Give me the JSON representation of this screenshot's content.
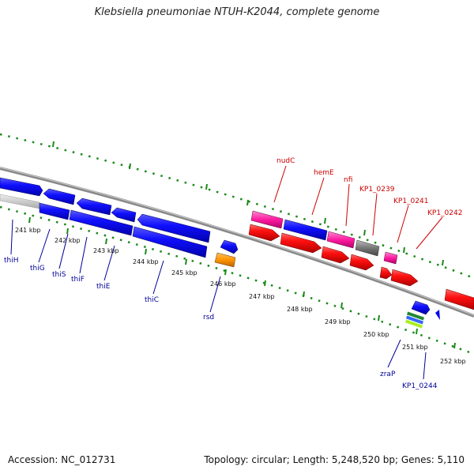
{
  "title": "Klebsiella pneumoniae NTUH-K2044, complete genome",
  "footer": {
    "accession": "Accession: NC_012731",
    "topology": "Topology: circular; Length: 5,248,520 bp; Genes: 5,110"
  },
  "colors": {
    "forward_gene": "#ff0000",
    "reverse_gene": "#0000ee",
    "label_forward": "#cc0000",
    "label_reverse": "#000099",
    "backbone": "#888888",
    "tick_green": "#1a8a1a"
  },
  "scale_labels": [
    "241 kbp",
    "242 kbp",
    "243 kbp",
    "244 kbp",
    "245 kbp",
    "246 kbp",
    "247 kbp",
    "248 kbp",
    "249 kbp",
    "250 kbp",
    "251 kbp",
    "252 kbp"
  ],
  "gene_labels_top": [
    "nudC",
    "hemE",
    "nfi",
    "KP1_0239",
    "KP1_0241",
    "KP1_0242"
  ],
  "gene_labels_bottom": [
    "thiH",
    "thiG",
    "thiS",
    "thiF",
    "thiE",
    "thiC",
    "rsd",
    "zraP",
    "KP1_0244"
  ]
}
